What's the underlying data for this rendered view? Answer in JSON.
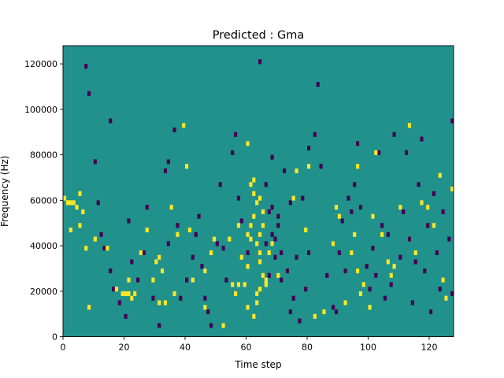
{
  "chart_data": {
    "type": "heatmap",
    "title": "Predicted : Gma",
    "xlabel": "Time step",
    "ylabel": "Frequency (Hz)",
    "xlim": [
      0,
      128
    ],
    "ylim": [
      0,
      128000
    ],
    "x_ticks": [
      "0",
      "20",
      "40",
      "60",
      "80",
      "100",
      "120"
    ],
    "y_ticks": [
      "0",
      "20000",
      "40000",
      "60000",
      "80000",
      "100000",
      "120000"
    ],
    "n_time_steps": 128,
    "n_freq_bins": 64,
    "colors": {
      "background": "#21918c",
      "high": "#fde725",
      "low": "#440154"
    },
    "values_legend": {
      "background": 0.5,
      "high": 1,
      "low": 0
    },
    "high_cells": [
      [
        0,
        30
      ],
      [
        1,
        29
      ],
      [
        2,
        29
      ],
      [
        3,
        29
      ],
      [
        4,
        28
      ],
      [
        5,
        31
      ],
      [
        6,
        27
      ],
      [
        5,
        24
      ],
      [
        7,
        19
      ],
      [
        2,
        23
      ],
      [
        8,
        6
      ],
      [
        10,
        21
      ],
      [
        17,
        10
      ],
      [
        19,
        9
      ],
      [
        20,
        9
      ],
      [
        21,
        9
      ],
      [
        22,
        8
      ],
      [
        23,
        9
      ],
      [
        21,
        12
      ],
      [
        25,
        18
      ],
      [
        27,
        23
      ],
      [
        29,
        12
      ],
      [
        30,
        16
      ],
      [
        31,
        17
      ],
      [
        31,
        7
      ],
      [
        32,
        14
      ],
      [
        33,
        7
      ],
      [
        35,
        28
      ],
      [
        36,
        9
      ],
      [
        37,
        22
      ],
      [
        39,
        46
      ],
      [
        40,
        37
      ],
      [
        41,
        23
      ],
      [
        42,
        12
      ],
      [
        46,
        14
      ],
      [
        49,
        21
      ],
      [
        52,
        2
      ],
      [
        54,
        21
      ],
      [
        56,
        9
      ],
      [
        57,
        11
      ],
      [
        58,
        17
      ],
      [
        59,
        11
      ],
      [
        60,
        15
      ],
      [
        61,
        21
      ],
      [
        61,
        24
      ],
      [
        62,
        26
      ],
      [
        62,
        31
      ],
      [
        60,
        22
      ],
      [
        60,
        6
      ],
      [
        61,
        33
      ],
      [
        62,
        34
      ],
      [
        63,
        29
      ],
      [
        64,
        30
      ],
      [
        64,
        18
      ],
      [
        63,
        7
      ],
      [
        63,
        20
      ],
      [
        64,
        22
      ],
      [
        65,
        24
      ],
      [
        65,
        27
      ],
      [
        62,
        4
      ],
      [
        63,
        9
      ],
      [
        64,
        10
      ],
      [
        64,
        16
      ],
      [
        65,
        13
      ],
      [
        66,
        12
      ],
      [
        66,
        11
      ],
      [
        67,
        18
      ],
      [
        68,
        20
      ],
      [
        70,
        13
      ],
      [
        75,
        30
      ],
      [
        76,
        36
      ],
      [
        79,
        23
      ],
      [
        80,
        37
      ],
      [
        85,
        5
      ],
      [
        89,
        28
      ],
      [
        90,
        26
      ],
      [
        92,
        7
      ],
      [
        94,
        18
      ],
      [
        95,
        22
      ],
      [
        96,
        14
      ],
      [
        97,
        9
      ],
      [
        98,
        11
      ],
      [
        101,
        26
      ],
      [
        100,
        6
      ],
      [
        104,
        22
      ],
      [
        106,
        16
      ],
      [
        107,
        13
      ],
      [
        108,
        15
      ],
      [
        110,
        28
      ],
      [
        113,
        46
      ],
      [
        115,
        18
      ],
      [
        117,
        29
      ],
      [
        119,
        28
      ],
      [
        121,
        24
      ],
      [
        123,
        35
      ],
      [
        124,
        12
      ],
      [
        125,
        8
      ],
      [
        127,
        32
      ],
      [
        55,
        11
      ],
      [
        57,
        24
      ],
      [
        60,
        42
      ],
      [
        82,
        4
      ],
      [
        102,
        40
      ],
      [
        88,
        20
      ],
      [
        46,
        6
      ],
      [
        14,
        19
      ],
      [
        48,
        18
      ],
      [
        96,
        37
      ]
    ],
    "low_cells": [
      [
        7,
        59
      ],
      [
        8,
        53
      ],
      [
        10,
        38
      ],
      [
        11,
        29
      ],
      [
        12,
        22
      ],
      [
        13,
        19
      ],
      [
        15,
        14
      ],
      [
        16,
        10
      ],
      [
        18,
        7
      ],
      [
        20,
        4
      ],
      [
        21,
        25
      ],
      [
        22,
        16
      ],
      [
        24,
        12
      ],
      [
        26,
        18
      ],
      [
        27,
        28
      ],
      [
        29,
        8
      ],
      [
        31,
        2
      ],
      [
        33,
        36
      ],
      [
        34,
        20
      ],
      [
        36,
        45
      ],
      [
        37,
        24
      ],
      [
        38,
        8
      ],
      [
        40,
        12
      ],
      [
        42,
        17
      ],
      [
        43,
        22
      ],
      [
        44,
        26
      ],
      [
        45,
        15
      ],
      [
        46,
        8
      ],
      [
        47,
        5
      ],
      [
        48,
        2
      ],
      [
        50,
        20
      ],
      [
        51,
        33
      ],
      [
        52,
        19
      ],
      [
        53,
        12
      ],
      [
        55,
        40
      ],
      [
        56,
        44
      ],
      [
        57,
        30
      ],
      [
        58,
        25
      ],
      [
        64,
        60
      ],
      [
        66,
        33
      ],
      [
        67,
        13
      ],
      [
        68,
        22
      ],
      [
        68,
        39
      ],
      [
        69,
        21
      ],
      [
        69,
        17
      ],
      [
        70,
        26
      ],
      [
        71,
        12
      ],
      [
        72,
        36
      ],
      [
        73,
        14
      ],
      [
        74,
        29
      ],
      [
        74,
        5
      ],
      [
        75,
        8
      ],
      [
        76,
        17
      ],
      [
        77,
        3
      ],
      [
        78,
        30
      ],
      [
        79,
        10
      ],
      [
        80,
        18
      ],
      [
        80,
        41
      ],
      [
        82,
        44
      ],
      [
        83,
        55
      ],
      [
        84,
        37
      ],
      [
        86,
        13
      ],
      [
        88,
        20
      ],
      [
        89,
        5
      ],
      [
        91,
        25
      ],
      [
        92,
        14
      ],
      [
        93,
        30
      ],
      [
        95,
        33
      ],
      [
        96,
        42
      ],
      [
        97,
        28
      ],
      [
        99,
        15
      ],
      [
        100,
        10
      ],
      [
        101,
        19
      ],
      [
        102,
        13
      ],
      [
        103,
        40
      ],
      [
        104,
        24
      ],
      [
        105,
        8
      ],
      [
        106,
        22
      ],
      [
        107,
        11
      ],
      [
        108,
        44
      ],
      [
        110,
        17
      ],
      [
        111,
        27
      ],
      [
        112,
        40
      ],
      [
        113,
        21
      ],
      [
        114,
        7
      ],
      [
        115,
        16
      ],
      [
        116,
        33
      ],
      [
        117,
        43
      ],
      [
        118,
        14
      ],
      [
        119,
        24
      ],
      [
        120,
        5
      ],
      [
        121,
        31
      ],
      [
        122,
        18
      ],
      [
        123,
        10
      ],
      [
        124,
        27
      ],
      [
        126,
        21
      ],
      [
        127,
        9
      ],
      [
        127,
        47
      ],
      [
        90,
        18
      ],
      [
        94,
        27
      ],
      [
        34,
        38
      ],
      [
        15,
        47
      ],
      [
        60,
        18
      ],
      [
        88,
        6
      ],
      [
        66,
        20
      ],
      [
        67,
        27
      ],
      [
        68,
        28
      ],
      [
        70,
        24
      ],
      [
        71,
        18
      ]
    ]
  }
}
